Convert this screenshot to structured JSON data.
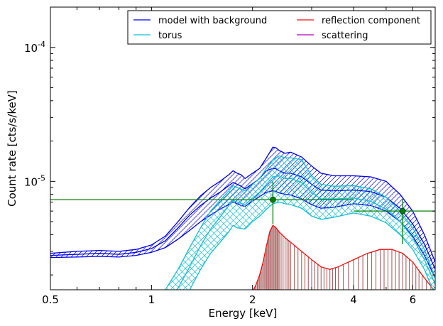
{
  "chart_data": {
    "type": "line",
    "xlabel": "Energy [keV]",
    "ylabel": "Count rate [cts/s/keV]",
    "xscale": "log",
    "yscale": "log",
    "xlim": [
      0.5,
      7.0
    ],
    "ylim": [
      1.55e-06,
      0.0002
    ],
    "x_ticks": [
      {
        "value": 0.5,
        "label": "0.5"
      },
      {
        "value": 1,
        "label": "1"
      },
      {
        "value": 2,
        "label": "2"
      },
      {
        "value": 4,
        "label": "4"
      },
      {
        "value": 6,
        "label": "6"
      }
    ],
    "y_ticks": [
      {
        "value": 1e-05,
        "base": "10",
        "exp": "-5"
      },
      {
        "value": 0.0001,
        "base": "10",
        "exp": "-4"
      }
    ],
    "legend": {
      "placement": "top-right",
      "entries": [
        {
          "label": "model with background",
          "color": "#0000ee"
        },
        {
          "label": "reflection component",
          "color": "#ee1111"
        },
        {
          "label": "torus",
          "color": "#17becf"
        },
        {
          "label": "scattering",
          "color": "#b000c0"
        }
      ]
    },
    "series": [
      {
        "name": "model with background",
        "color": "#0000ee",
        "x": [
          0.5,
          0.6,
          0.7,
          0.8,
          0.9,
          1.0,
          1.1,
          1.2,
          1.3,
          1.4,
          1.5,
          1.6,
          1.7,
          1.75,
          1.8,
          1.85,
          1.9,
          2.0,
          2.1,
          2.2,
          2.3,
          2.35,
          2.4,
          2.5,
          2.6,
          2.8,
          3.0,
          3.2,
          3.5,
          4.0,
          4.5,
          5.0,
          5.5,
          6.0,
          6.5,
          7.0
        ],
        "upper": [
          2.9e-06,
          3e-06,
          3.05e-06,
          3e-06,
          3.1e-06,
          3.35e-06,
          3.9e-06,
          5e-06,
          6.4e-06,
          7.8e-06,
          9e-06,
          1e-05,
          1.12e-05,
          1.2e-05,
          1.15e-05,
          1.12e-05,
          1.05e-05,
          1.15e-05,
          1.25e-05,
          1.5e-05,
          1.8e-05,
          1.78e-05,
          1.7e-05,
          1.62e-05,
          1.65e-05,
          1.52e-05,
          1.3e-05,
          1.15e-05,
          1.1e-05,
          1.1e-05,
          1.08e-05,
          1e-05,
          8e-06,
          6e-06,
          4e-06,
          2.5e-06
        ],
        "median": [
          2.8e-06,
          2.85e-06,
          2.9e-06,
          2.85e-06,
          2.95e-06,
          3.15e-06,
          3.6e-06,
          4.5e-06,
          5.6e-06,
          6.6e-06,
          7.5e-06,
          8.3e-06,
          9.3e-06,
          9.8e-06,
          9.5e-06,
          9.2e-06,
          8.8e-06,
          9.6e-06,
          1.05e-05,
          1.2e-05,
          1.25e-05,
          1.24e-05,
          1.2e-05,
          1.15e-05,
          1.15e-05,
          1.08e-05,
          9.5e-06,
          8.6e-06,
          8.5e-06,
          8.6e-06,
          8.4e-06,
          7.6e-06,
          6.3e-06,
          4.8e-06,
          3.4e-06,
          2.2e-06
        ],
        "lower": [
          2.7e-06,
          2.72e-06,
          2.75e-06,
          2.72e-06,
          2.8e-06,
          2.95e-06,
          3.2e-06,
          3.7e-06,
          4.3e-06,
          5e-06,
          5.6e-06,
          6.2e-06,
          6.7e-06,
          7e-06,
          6.8e-06,
          6.6e-06,
          6.5e-06,
          7.1e-06,
          7.7e-06,
          8.3e-06,
          8.5e-06,
          8.4e-06,
          8.2e-06,
          8e-06,
          7.9e-06,
          7.4e-06,
          6.7e-06,
          6.3e-06,
          6.4e-06,
          6.8e-06,
          6.6e-06,
          6e-06,
          5e-06,
          3.9e-06,
          2.8e-06,
          1.9e-06
        ]
      },
      {
        "name": "torus",
        "color": "#17becf",
        "x": [
          1.1,
          1.2,
          1.3,
          1.4,
          1.5,
          1.6,
          1.7,
          1.75,
          1.8,
          1.9,
          2.0,
          2.1,
          2.2,
          2.3,
          2.4,
          2.5,
          2.6,
          2.8,
          3.0,
          3.2,
          3.5,
          4.0,
          4.5,
          5.0,
          5.5,
          6.0,
          6.5,
          7.0
        ],
        "upper": [
          1.55e-06,
          2.2e-06,
          3.2e-06,
          4.5e-06,
          6e-06,
          7.2e-06,
          8.5e-06,
          9.3e-06,
          9e-06,
          8.5e-06,
          9.5e-06,
          1.05e-05,
          1.25e-05,
          1.45e-05,
          1.55e-05,
          1.5e-05,
          1.5e-05,
          1.45e-05,
          1.1e-05,
          9.5e-06,
          9.2e-06,
          9.3e-06,
          8.8e-06,
          7.6e-06,
          6e-06,
          4.5e-06,
          3.1e-06,
          1.9e-06
        ],
        "median": [
          1.2e-06,
          1.6e-06,
          2.3e-06,
          3.3e-06,
          4.4e-06,
          5.4e-06,
          6.6e-06,
          7.2e-06,
          7e-06,
          6.7e-06,
          7.5e-06,
          8.3e-06,
          9.5e-06,
          1.08e-05,
          1.1e-05,
          1.05e-05,
          1.05e-05,
          9.8e-06,
          8.2e-06,
          7.4e-06,
          7.4e-06,
          7.5e-06,
          7.1e-06,
          6.2e-06,
          5e-06,
          3.8e-06,
          2.6e-06,
          1.7e-06
        ],
        "lower": [
          9e-07,
          1.1e-06,
          1.55e-06,
          2.2e-06,
          2.9e-06,
          3.5e-06,
          4.2e-06,
          4.7e-06,
          4.5e-06,
          4.4e-06,
          5e-06,
          5.5e-06,
          6.2e-06,
          6.8e-06,
          7e-06,
          6.8e-06,
          6.7e-06,
          6.3e-06,
          5.5e-06,
          5.2e-06,
          5.4e-06,
          5.8e-06,
          5.5e-06,
          4.9e-06,
          4e-06,
          3.1e-06,
          2.2e-06,
          1.4e-06
        ]
      },
      {
        "name": "reflection component",
        "color": "#ee1111",
        "x": [
          1.95,
          2.0,
          2.05,
          2.1,
          2.15,
          2.2,
          2.25,
          2.3,
          2.35,
          2.4,
          2.5,
          2.6,
          2.8,
          3.0,
          3.2,
          3.4,
          3.6,
          4.0,
          4.4,
          4.8,
          5.2,
          5.6,
          6.0,
          6.4,
          7.0
        ],
        "values": [
          1.3e-06,
          1.5e-06,
          1.7e-06,
          2e-06,
          2.5e-06,
          3.3e-06,
          4.2e-06,
          4.7e-06,
          4.5e-06,
          4.2e-06,
          3.8e-06,
          3.5e-06,
          3e-06,
          2.6e-06,
          2.3e-06,
          2.2e-06,
          2.3e-06,
          2.6e-06,
          2.9e-06,
          3.1e-06,
          3.1e-06,
          2.9e-06,
          2.5e-06,
          2e-06,
          1.5e-06
        ]
      },
      {
        "name": "scattering",
        "color": "#b000c0",
        "x": [],
        "values": []
      }
    ],
    "data_points": [
      {
        "x": 2.3,
        "y": 7.3e-06,
        "xerr": [
          0.5,
          4.0
        ],
        "yerr": [
          4.8e-06,
          1e-05
        ]
      },
      {
        "x": 5.6,
        "y": 6e-06,
        "xerr": [
          4.0,
          7.0
        ],
        "yerr": [
          3.4e-06,
          7.4e-06
        ]
      }
    ],
    "data_color": "#008000"
  }
}
